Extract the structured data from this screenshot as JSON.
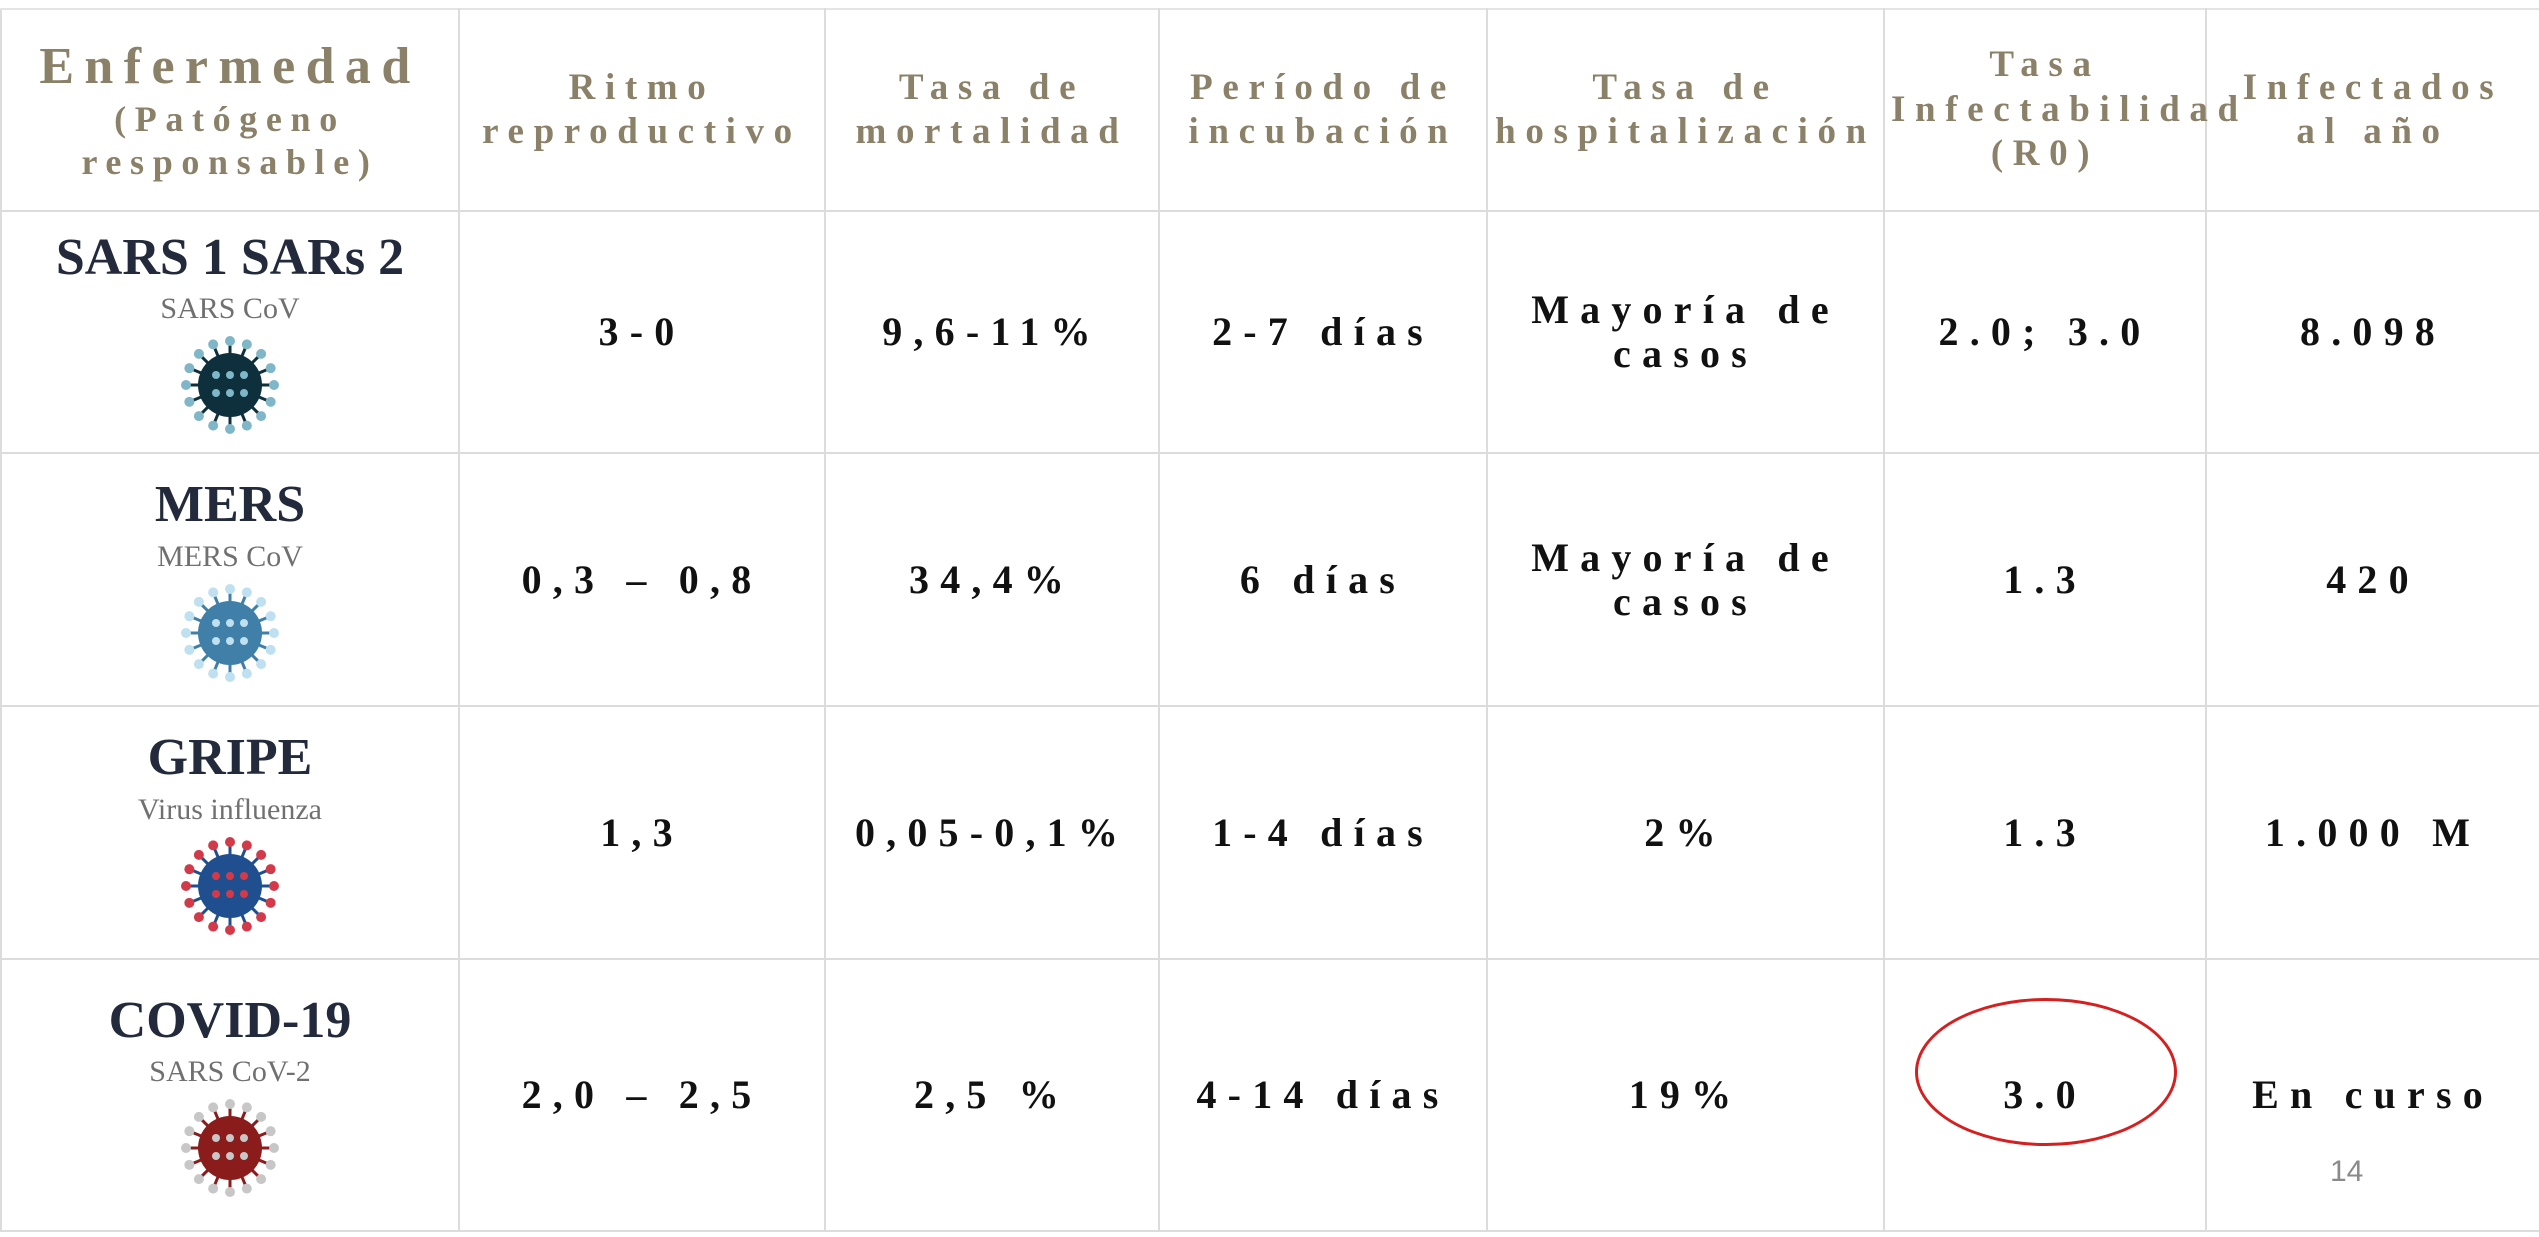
{
  "table": {
    "header": [
      {
        "title": "Enfermedad",
        "subtitle": "(Patógeno responsable)"
      },
      "Ritmo reproductivo",
      "Tasa de mortalidad",
      "Período de incubación",
      "Tasa de hospitalización",
      "Tasa Infectabilidad (R0)",
      "Infectados al año"
    ],
    "rows": [
      {
        "disease": "SARS 1 SARs 2",
        "pathogen": "SARS CoV",
        "cells": [
          "3-0",
          "9,6-11%",
          "2-7 días",
          "Mayoría de casos",
          "2.0; 3.0",
          "8.098"
        ]
      },
      {
        "disease": "MERS",
        "pathogen": "MERS CoV",
        "cells": [
          "0,3 – 0,8",
          "34,4%",
          "6 días",
          "Mayoría de casos",
          "1.3",
          "420"
        ]
      },
      {
        "disease": "GRIPE",
        "pathogen": "Virus influenza",
        "cells": [
          "1,3",
          "0,05-0,1%",
          "1-4 días",
          "2%",
          "1.3",
          "1.000 M"
        ]
      },
      {
        "disease": "COVID-19",
        "pathogen": "SARS CoV-2",
        "cells": [
          "2,0 – 2,5",
          "2,5 %",
          "4-14 días",
          "19%",
          "3.0",
          "En curso"
        ]
      }
    ]
  },
  "page_number": "14"
}
